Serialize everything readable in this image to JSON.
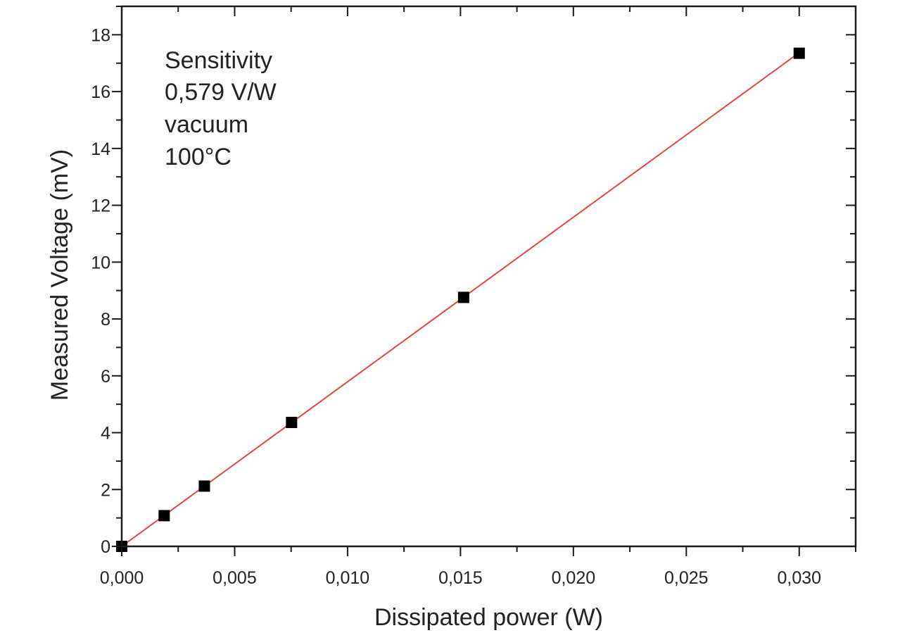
{
  "chart_data": {
    "type": "scatter",
    "xlabel": "Dissipated power (W)",
    "ylabel": "Measured Voltage (mV)",
    "xlim": [
      0,
      0.0325
    ],
    "ylim": [
      0,
      19
    ],
    "x_ticks": [
      0,
      0.005,
      0.01,
      0.015,
      0.02,
      0.025,
      0.03
    ],
    "x_tick_labels": [
      "0,000",
      "0,005",
      "0,010",
      "0,015",
      "0,020",
      "0,025",
      "0,030"
    ],
    "y_ticks": [
      0,
      2,
      4,
      6,
      8,
      10,
      12,
      14,
      16,
      18
    ],
    "y_tick_labels": [
      "0",
      "2",
      "4",
      "6",
      "8",
      "10",
      "12",
      "14",
      "16",
      "18"
    ],
    "grid": false,
    "legend": "none",
    "annotations": [
      "Sensitivity",
      "0,579 V/W",
      "vacuum",
      "100°C"
    ],
    "series": [
      {
        "marker": "square",
        "color": "#000000",
        "x": [
          0,
          0.00188,
          0.00366,
          0.00752,
          0.01514,
          0.03
        ],
        "y": [
          0,
          1.08,
          2.12,
          4.36,
          8.76,
          17.35
        ]
      }
    ],
    "fit_line": {
      "color": "#e8453c",
      "x": [
        0,
        0.03
      ],
      "y": [
        0,
        17.37
      ]
    }
  }
}
